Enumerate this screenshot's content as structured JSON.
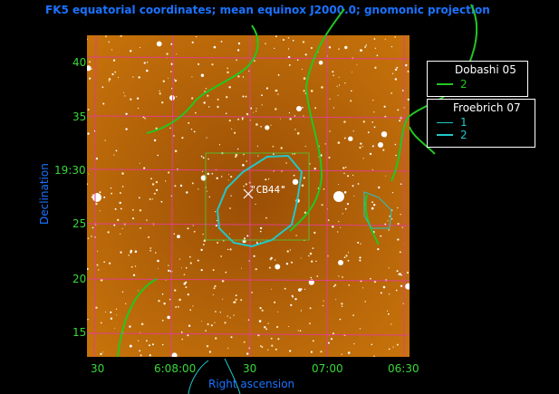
{
  "title": "FK5 equatorial coordinates; mean equinox J2000.0; gnomonic projection",
  "axes": {
    "xlabel": "Right ascension",
    "ylabel": "Declination",
    "x_ticks": [
      "30",
      "6:08:00",
      "30",
      "07:00",
      "06:30"
    ],
    "y_ticks": [
      "40",
      "35",
      "19:30",
      "25",
      "20",
      "15"
    ]
  },
  "object_label": "\"CB44\"",
  "legends": [
    {
      "title": "Dobashi 05",
      "items": [
        {
          "label": "2",
          "color": "#22c722"
        }
      ]
    },
    {
      "title": "Froebrich 07",
      "items": [
        {
          "label": "1",
          "color": "#22c8c8"
        },
        {
          "label": "2",
          "color": "#22c8c8"
        }
      ]
    }
  ],
  "colors": {
    "grid": "#e0408a",
    "dobashi": "#22c722",
    "froebrich": "#22c8c8",
    "box": "#5cb52e",
    "image_bg": "#c8700a"
  }
}
